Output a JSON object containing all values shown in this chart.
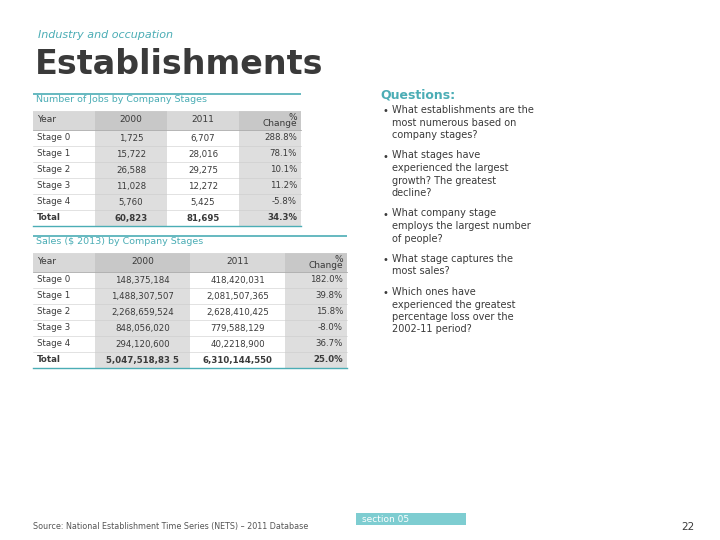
{
  "title_small": "Industry and occupation",
  "title_large": "Establishments",
  "table1_header": "Number of Jobs by Company Stages",
  "table1_col_headers": [
    "Year",
    "2000",
    "2011",
    "% Change"
  ],
  "table1_rows": [
    [
      "Stage 0",
      "1,725",
      "6,707",
      "288.8%"
    ],
    [
      "Stage 1",
      "15,722",
      "28,016",
      "78.1%"
    ],
    [
      "Stage 2",
      "26,588",
      "29,275",
      "10.1%"
    ],
    [
      "Stage 3",
      "11,028",
      "12,272",
      "11.2%"
    ],
    [
      "Stage 4",
      "5,760",
      "5,425",
      "-5.8%"
    ],
    [
      "Total",
      "60,823",
      "81,695",
      "34.3%"
    ]
  ],
  "table2_header": "Sales ($ 2013) by Company Stages",
  "table2_col_headers": [
    "Year",
    "2000",
    "2011",
    "% Change"
  ],
  "table2_rows": [
    [
      "Stage 0",
      "148,375,184",
      "418,420,031",
      "182.0%"
    ],
    [
      "Stage 1",
      "1,488,307,507",
      "2,081,507,365",
      "39.8%"
    ],
    [
      "Stage 2",
      "2,268,659,524",
      "2,628,410,425",
      "15.8%"
    ],
    [
      "Stage 3",
      "848,056,020",
      "779,588,129",
      "-8.0%"
    ],
    [
      "Stage 4",
      "294,120,600",
      "40,2218,900",
      "36.7%"
    ],
    [
      "Total",
      "5,047,518,83 5",
      "6,310,144,550",
      "25.0%"
    ]
  ],
  "questions_title": "Questions:",
  "questions": [
    [
      "What establishments are the",
      "most numerous based on",
      "company stages?"
    ],
    [
      "What stages have",
      "experienced the largest",
      "growth? The greatest",
      "decline?"
    ],
    [
      "What company stage",
      "employs the largest number",
      "of people?"
    ],
    [
      "What stage captures the",
      "most sales?"
    ],
    [
      "Which ones have",
      "experienced the greatest",
      "percentage loss over the",
      "2002-11 period?"
    ]
  ],
  "footer": "Source: National Establishment Time Series (NETS) – 2011 Database",
  "page_num": "22",
  "section": "section 05",
  "teal": "#4BADB5",
  "dark_gray": "#3A3A3A",
  "light_gray": "#CCCCCC",
  "col_shade": "#DEDEDE",
  "row_shade": "#EBEBEB",
  "bg_color": "#FFFFFF",
  "teal_light": "#7ECDD1"
}
